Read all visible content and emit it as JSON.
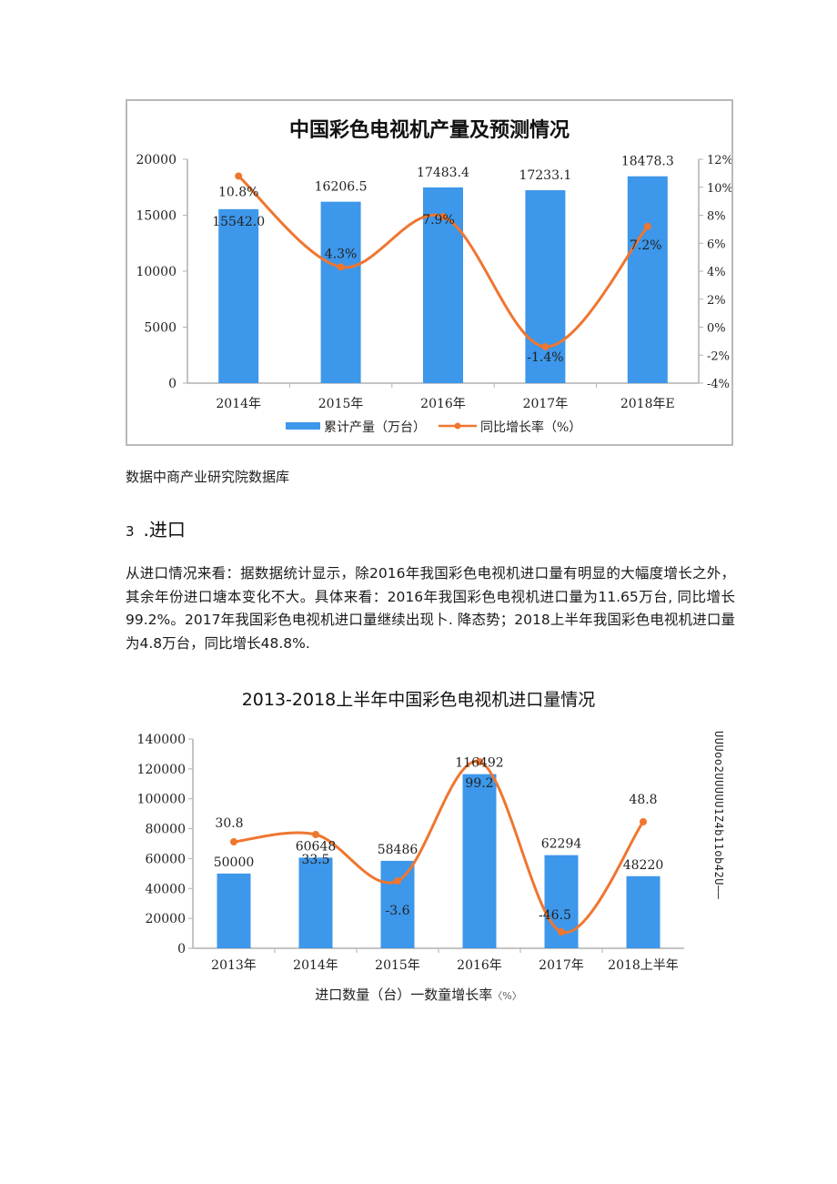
{
  "chart1": {
    "title": "中国彩色电视机产量及预测情况",
    "legend": {
      "bar_label": "累计产量（万台）",
      "line_label": "同比增长率（%）"
    }
  },
  "caption": "数据中商产业研究院数据库",
  "section": {
    "number": "3",
    "title": ".进口"
  },
  "paragraph": "从进口情况来看：据数据统计显示，除2016年我国彩色电视机进口量有明显的大幅度增长之外，其余年份进口塘本变化不大。具体来看：2016年我国彩色电视机进口量为11.65万台, 同比增长99.2%。2017年我国彩色电视机进口量继续出现卜. 降态势；2018上半年我国彩色电视机进口量为4.8万台，同比增长48.8%.",
  "chart2": {
    "title": "2013-2018上半年中国彩色电视机进口量情况",
    "legend_text": "进口数量（台）一数童增长率",
    "legend_suffix": "〈%〉"
  },
  "side_artifact": "UUUoo2UUUUU1Z4b11ob42U——",
  "colors": {
    "bar": "#3d97ea",
    "line": "#ef7630",
    "axis": "#b0b0b0",
    "frame": "#b9b9b9"
  },
  "chart_data": [
    {
      "type": "bar+line",
      "title": "中国彩色电视机产量及预测情况",
      "categories": [
        "2014年",
        "2015年",
        "2016年",
        "2017年",
        "2018年E"
      ],
      "series": [
        {
          "name": "累计产量（万台）",
          "type": "bar",
          "axis": "left",
          "values": [
            15542.0,
            16206.5,
            17483.4,
            17233.1,
            18478.3
          ],
          "labels": [
            "15542.0",
            "16206.5",
            "17483.4",
            "17233.1",
            "18478.3"
          ]
        },
        {
          "name": "同比增长率（%）",
          "type": "line",
          "axis": "right",
          "values": [
            10.8,
            4.3,
            7.9,
            -1.4,
            7.2
          ],
          "labels": [
            "10.8%",
            "4.3%",
            "7.9%",
            "-1.4%",
            "7.2%"
          ]
        }
      ],
      "y_left": {
        "ticks": [
          "0",
          "5000",
          "10000",
          "15000",
          "20000"
        ],
        "range": [
          0,
          20000
        ]
      },
      "y_right": {
        "ticks": [
          "-4%",
          "-2%",
          "0%",
          "2%",
          "4%",
          "6%",
          "8%",
          "10%",
          "12%"
        ],
        "range": [
          -4,
          12
        ]
      },
      "legend_position": "bottom",
      "grid": false
    },
    {
      "type": "bar+line",
      "title": "2013-2018上半年中国彩色电视机进口量情况",
      "categories": [
        "2013年",
        "2014年",
        "2015年",
        "2016年",
        "2017年",
        "2018上半年"
      ],
      "series": [
        {
          "name": "进口数量（台）",
          "type": "bar",
          "axis": "left",
          "values": [
            50000,
            60648,
            58486,
            116492,
            62294,
            48220
          ],
          "labels": [
            "50000",
            "60648",
            "58486",
            "116492",
            "62294",
            "48220"
          ]
        },
        {
          "name": "增长率（%）",
          "type": "line",
          "axis": "right",
          "values": [
            30.8,
            33.5,
            -3.6,
            99.2,
            -46.5,
            48.8
          ],
          "labels": [
            "30.8",
            "33.5",
            "-3.6",
            "99.2",
            "-46.5",
            "48.8"
          ]
        }
      ],
      "y_left": {
        "ticks": [
          "0",
          "20000",
          "40000",
          "60000",
          "80000",
          "100000",
          "120000",
          "140000"
        ],
        "range": [
          0,
          140000
        ]
      },
      "legend_position": "bottom",
      "grid": false
    }
  ]
}
